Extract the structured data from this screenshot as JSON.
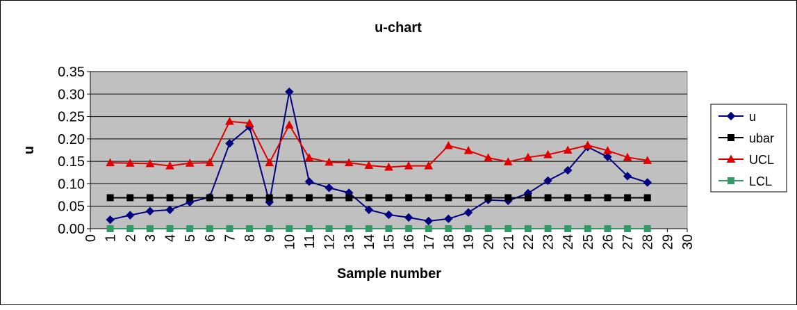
{
  "chart_data": {
    "type": "line",
    "title": "u-chart",
    "xlabel": "Sample number",
    "ylabel": "u",
    "xlim": [
      0,
      30
    ],
    "ylim": [
      0,
      0.35
    ],
    "x_ticks": [
      0,
      1,
      2,
      3,
      4,
      5,
      6,
      7,
      8,
      9,
      10,
      11,
      12,
      13,
      14,
      15,
      16,
      17,
      18,
      19,
      20,
      21,
      22,
      23,
      24,
      25,
      26,
      27,
      28,
      29,
      30
    ],
    "y_ticks": [
      "0.00",
      "0.05",
      "0.10",
      "0.15",
      "0.20",
      "0.25",
      "0.30",
      "0.35"
    ],
    "grid": "horizontal",
    "legend_position": "right",
    "plot_background": "#c0c0c0",
    "x": [
      1,
      2,
      3,
      4,
      5,
      6,
      7,
      8,
      9,
      10,
      11,
      12,
      13,
      14,
      15,
      16,
      17,
      18,
      19,
      20,
      21,
      22,
      23,
      24,
      25,
      26,
      27,
      28
    ],
    "series": [
      {
        "name": "u",
        "color": "#000080",
        "marker": "diamond",
        "values": [
          0.02,
          0.03,
          0.039,
          0.042,
          0.059,
          0.07,
          0.19,
          0.227,
          0.059,
          0.305,
          0.105,
          0.091,
          0.08,
          0.042,
          0.031,
          0.025,
          0.017,
          0.022,
          0.036,
          0.064,
          0.062,
          0.079,
          0.107,
          0.13,
          0.182,
          0.16,
          0.117,
          0.103
        ]
      },
      {
        "name": "ubar",
        "color": "#000000",
        "marker": "square",
        "values": [
          0.069,
          0.069,
          0.069,
          0.069,
          0.069,
          0.069,
          0.069,
          0.069,
          0.069,
          0.069,
          0.069,
          0.069,
          0.069,
          0.069,
          0.069,
          0.069,
          0.069,
          0.069,
          0.069,
          0.069,
          0.069,
          0.069,
          0.069,
          0.069,
          0.069,
          0.069,
          0.069,
          0.069
        ]
      },
      {
        "name": "UCL",
        "color": "#e00000",
        "marker": "triangle",
        "values": [
          0.147,
          0.146,
          0.145,
          0.14,
          0.146,
          0.147,
          0.239,
          0.235,
          0.147,
          0.231,
          0.158,
          0.148,
          0.147,
          0.141,
          0.137,
          0.14,
          0.14,
          0.185,
          0.174,
          0.158,
          0.149,
          0.159,
          0.165,
          0.175,
          0.186,
          0.174,
          0.159,
          0.152
        ]
      },
      {
        "name": "LCL",
        "color": "#339966",
        "marker": "square",
        "values": [
          0,
          0,
          0,
          0,
          0,
          0,
          0,
          0,
          0,
          0,
          0,
          0,
          0,
          0,
          0,
          0,
          0,
          0,
          0,
          0,
          0,
          0,
          0,
          0,
          0,
          0,
          0,
          0
        ]
      }
    ]
  }
}
